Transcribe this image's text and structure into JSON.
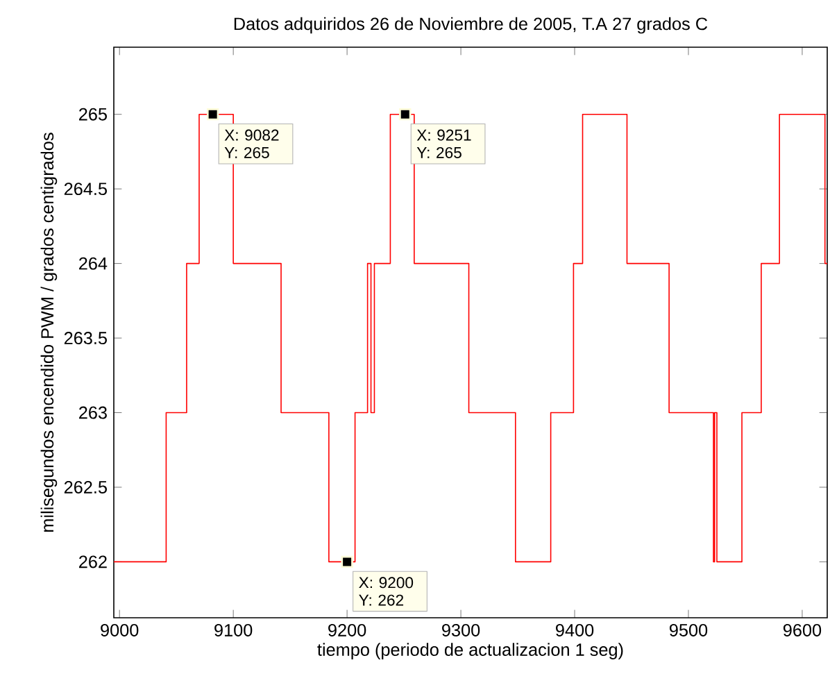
{
  "chart_data": {
    "type": "step",
    "title": "Datos adquiridos 26 de Noviembre de 2005, T.A 27 grados C",
    "xlabel": "tiempo (periodo de actualizacion 1 seg)",
    "ylabel": "milisegundos encendido PWM / grados centigrados",
    "series": [
      {
        "color": "#ff0000",
        "x": [
          8995,
          9041,
          9059,
          9070,
          9100,
          9142,
          9184,
          9207,
          9218,
          9221,
          9224,
          9238,
          9259,
          9307,
          9348,
          9379,
          9399,
          9407,
          9446,
          9483,
          9522,
          9523,
          9525,
          9547,
          9564,
          9580,
          9620,
          9622
        ],
        "values": [
          262,
          263,
          264,
          265,
          264,
          263,
          262,
          263,
          264,
          263,
          264,
          265,
          264,
          263,
          262,
          263,
          264,
          265,
          264,
          263,
          262,
          263,
          262,
          263,
          264,
          265,
          264,
          264
        ]
      }
    ],
    "xlim": [
      8995,
      9622
    ],
    "ylim": [
      261.625,
      265.45
    ],
    "xticks": [
      9000,
      9100,
      9200,
      9300,
      9400,
      9500,
      9600
    ],
    "yticks": [
      262,
      262.5,
      263,
      263.5,
      264,
      264.5,
      265
    ],
    "grid": false,
    "marker": "none",
    "line_style": "solid",
    "annotations": [
      {
        "text": "X: 9082 Y: 265",
        "x": 9082,
        "y": 265
      },
      {
        "text": "X: 9251 Y: 265",
        "x": 9251,
        "y": 265
      },
      {
        "text": "X: 9200 Y: 262",
        "x": 9200,
        "y": 262
      }
    ]
  }
}
